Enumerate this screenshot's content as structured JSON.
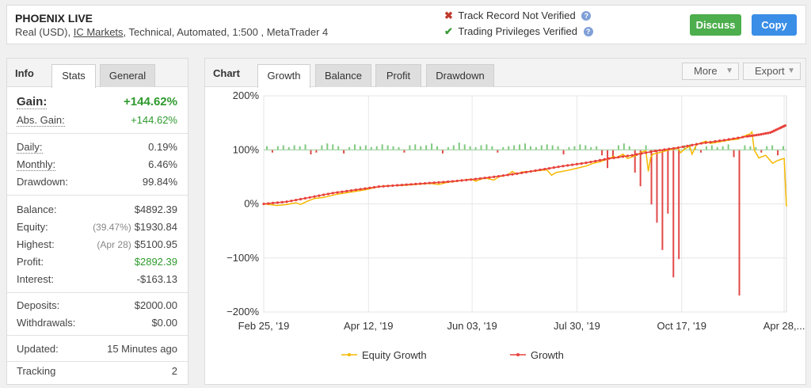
{
  "header": {
    "title": "PHOENIX LIVE",
    "subtitle_prefix": "Real (USD),",
    "broker_link": "IC Markets",
    "subtitle_suffix": ", Technical, Automated, 1:500 , MetaTrader 4",
    "verify_1": "Track Record Not Verified",
    "verify_2": "Trading Privileges Verified",
    "help_glyph": "?",
    "cross_glyph": "✖",
    "check_glyph": "✔",
    "discuss_label": "Discuss",
    "copy_label": "Copy"
  },
  "info": {
    "title": "Info",
    "tabs": [
      "Stats",
      "General"
    ],
    "gain": {
      "label": "Gain:",
      "value": "+144.62%"
    },
    "abs_gain": {
      "label": "Abs. Gain:",
      "value": "+144.62%"
    },
    "daily": {
      "label": "Daily:",
      "value": "0.19%"
    },
    "monthly": {
      "label": "Monthly:",
      "value": "6.46%"
    },
    "drawdown": {
      "label": "Drawdown:",
      "value": "99.84%"
    },
    "balance": {
      "label": "Balance:",
      "value": "$4892.39"
    },
    "equity": {
      "label": "Equity:",
      "note": "(39.47%)",
      "value": "$1930.84"
    },
    "highest": {
      "label": "Highest:",
      "note": "(Apr 28)",
      "value": "$5100.95"
    },
    "profit": {
      "label": "Profit:",
      "value": "$2892.39"
    },
    "interest": {
      "label": "Interest:",
      "value": "-$163.13"
    },
    "deposits": {
      "label": "Deposits:",
      "value": "$2000.00"
    },
    "withdrawals": {
      "label": "Withdrawals:",
      "value": "$0.00"
    },
    "updated": {
      "label": "Updated:",
      "value": "15 Minutes ago"
    },
    "tracking": {
      "label": "Tracking",
      "value": "2"
    },
    "colors": {
      "positive": "#2e9a2e"
    }
  },
  "chart_panel": {
    "title": "Chart",
    "tabs": [
      "Growth",
      "Balance",
      "Profit",
      "Drawdown"
    ],
    "more_label": "More",
    "export_label": "Export",
    "caret": "▼"
  },
  "chart_data": {
    "type": "line",
    "x_tick_labels": [
      "Feb 25, '19",
      "Apr 12, '19",
      "Jun 03, '19",
      "Jul 30, '19",
      "Oct 17, '19",
      "Apr 28,..."
    ],
    "y_tick_labels": [
      "200%",
      "100%",
      "0%",
      "−100%",
      "−200%"
    ],
    "ylim": [
      -200,
      200
    ],
    "grid": true,
    "legend_position": "bottom",
    "series": [
      {
        "name": "Equity Growth",
        "color": "#f5b800",
        "points": [
          [
            0,
            0
          ],
          [
            6,
            -3
          ],
          [
            10,
            -1
          ],
          [
            14,
            2
          ],
          [
            16,
            -1
          ],
          [
            19,
            5
          ],
          [
            22,
            10
          ],
          [
            26,
            12
          ],
          [
            32,
            18
          ],
          [
            38,
            22
          ],
          [
            44,
            26
          ],
          [
            48,
            30
          ],
          [
            52,
            33
          ],
          [
            56,
            34
          ],
          [
            60,
            34
          ],
          [
            66,
            36
          ],
          [
            72,
            38
          ],
          [
            76,
            36
          ],
          [
            80,
            40
          ],
          [
            84,
            42
          ],
          [
            90,
            46
          ],
          [
            92,
            42
          ],
          [
            96,
            48
          ],
          [
            100,
            44
          ],
          [
            102,
            50
          ],
          [
            106,
            54
          ],
          [
            108,
            60
          ],
          [
            110,
            55
          ],
          [
            112,
            59
          ],
          [
            116,
            60
          ],
          [
            120,
            62
          ],
          [
            123,
            63
          ],
          [
            125,
            53
          ],
          [
            127,
            58
          ],
          [
            132,
            62
          ],
          [
            136,
            66
          ],
          [
            140,
            70
          ],
          [
            143,
            75
          ],
          [
            146,
            78
          ],
          [
            150,
            84
          ],
          [
            152,
            88
          ],
          [
            153,
            85
          ],
          [
            156,
            92
          ],
          [
            158,
            84
          ],
          [
            162,
            90
          ],
          [
            164,
            96
          ],
          [
            166,
            98
          ],
          [
            167,
            60
          ],
          [
            168,
            86
          ],
          [
            169,
            92
          ],
          [
            172,
            95
          ],
          [
            176,
            100
          ],
          [
            180,
            103
          ],
          [
            181,
            95
          ],
          [
            183,
            102
          ],
          [
            185,
            107
          ],
          [
            186,
            92
          ],
          [
            188,
            110
          ],
          [
            190,
            113
          ],
          [
            192,
            116
          ],
          [
            194,
            112
          ],
          [
            198,
            115
          ],
          [
            202,
            118
          ],
          [
            206,
            120
          ],
          [
            208,
            124
          ],
          [
            210,
            128
          ],
          [
            211,
            129
          ],
          [
            212,
            133
          ],
          [
            213,
            100
          ],
          [
            215,
            85
          ],
          [
            218,
            90
          ],
          [
            221,
            75
          ],
          [
            223,
            80
          ],
          [
            225,
            83
          ],
          [
            226,
            84
          ],
          [
            227,
            -5
          ]
        ]
      },
      {
        "name": "Growth",
        "color": "#e8403a",
        "points": [
          [
            0,
            0
          ],
          [
            10,
            4
          ],
          [
            20,
            12
          ],
          [
            30,
            20
          ],
          [
            40,
            26
          ],
          [
            50,
            32
          ],
          [
            60,
            35
          ],
          [
            70,
            38
          ],
          [
            80,
            41
          ],
          [
            90,
            45
          ],
          [
            100,
            50
          ],
          [
            110,
            56
          ],
          [
            120,
            63
          ],
          [
            130,
            70
          ],
          [
            140,
            76
          ],
          [
            150,
            84
          ],
          [
            160,
            90
          ],
          [
            170,
            98
          ],
          [
            180,
            104
          ],
          [
            190,
            112
          ],
          [
            200,
            118
          ],
          [
            210,
            125
          ],
          [
            215,
            128
          ],
          [
            220,
            132
          ],
          [
            224,
            140
          ],
          [
            227,
            146
          ]
        ]
      }
    ],
    "daily_profit_bars": {
      "positive_color": "#7fc97f",
      "negative_color": "#e24848",
      "values": [
        4,
        -3,
        4,
        5,
        3,
        5,
        4,
        6,
        -5,
        -3,
        5,
        7,
        6,
        4,
        -4,
        3,
        6,
        4,
        5,
        3,
        4,
        6,
        5,
        4,
        3,
        -3,
        5,
        6,
        4,
        5,
        7,
        4,
        -4,
        3,
        5,
        8,
        6,
        4,
        3,
        5,
        6,
        4,
        -3,
        3,
        4,
        5,
        6,
        7,
        4,
        3,
        5,
        6,
        5,
        4,
        -5,
        3,
        4,
        6,
        5,
        3,
        4,
        -6,
        -20,
        -8,
        5,
        7,
        4,
        -25,
        -40,
        5,
        -60,
        -80,
        -110,
        -70,
        -140,
        -120,
        5,
        6,
        4,
        -3,
        4,
        5,
        3,
        4,
        6,
        -8,
        -160,
        5,
        4,
        3,
        -3,
        4,
        5,
        -6,
        4
      ]
    }
  }
}
